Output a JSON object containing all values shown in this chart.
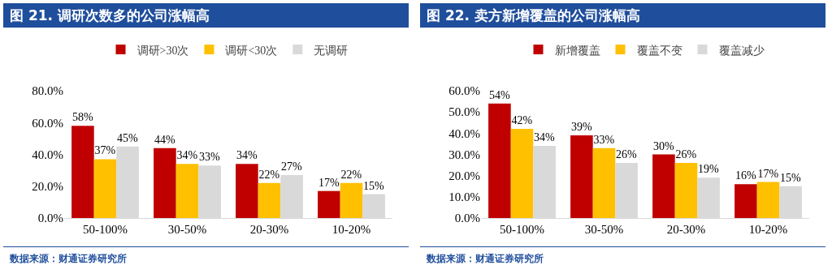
{
  "chart_data": [
    {
      "type": "bar",
      "title": "图 21. 调研次数多的公司涨幅高",
      "categories": [
        "50-100%",
        "30-50%",
        "20-30%",
        "10-20%"
      ],
      "series": [
        {
          "name": "调研>30次",
          "color": "#c00000",
          "values": [
            58,
            44,
            34,
            17
          ],
          "value_labels": [
            "58%",
            "44%",
            "34%",
            "17%"
          ]
        },
        {
          "name": "调研<30次",
          "color": "#ffc000",
          "values": [
            37,
            34,
            22,
            22
          ],
          "value_labels": [
            "37%",
            "34%",
            "22%",
            "22%"
          ]
        },
        {
          "name": "无调研",
          "color": "#d9d9d9",
          "values": [
            45,
            33,
            27,
            15
          ],
          "value_labels": [
            "45%",
            "33%",
            "27%",
            "15%"
          ]
        }
      ],
      "ylim": [
        0,
        80
      ],
      "yticks": [
        {
          "value": 0,
          "label": "0.0%"
        },
        {
          "value": 20,
          "label": "20.0%"
        },
        {
          "value": 40,
          "label": "40.0%"
        },
        {
          "value": 60,
          "label": "60.0%"
        },
        {
          "value": 80,
          "label": "80.0%"
        }
      ],
      "grid": false,
      "legend": "top",
      "annotations": [
        "数据来源：财通证券研究所"
      ]
    },
    {
      "type": "bar",
      "title": "图 22. 卖方新增覆盖的公司涨幅高",
      "categories": [
        "50-100%",
        "30-50%",
        "20-30%",
        "10-20%"
      ],
      "series": [
        {
          "name": "新增覆盖",
          "color": "#c00000",
          "values": [
            54,
            39,
            30,
            16
          ],
          "value_labels": [
            "54%",
            "39%",
            "30%",
            "16%"
          ]
        },
        {
          "name": "覆盖不变",
          "color": "#ffc000",
          "values": [
            42,
            33,
            26,
            17
          ],
          "value_labels": [
            "42%",
            "33%",
            "26%",
            "17%"
          ]
        },
        {
          "name": "覆盖减少",
          "color": "#d9d9d9",
          "values": [
            34,
            26,
            19,
            15
          ],
          "value_labels": [
            "34%",
            "26%",
            "19%",
            "15%"
          ]
        }
      ],
      "ylim": [
        0,
        60
      ],
      "yticks": [
        {
          "value": 0,
          "label": "0.0%"
        },
        {
          "value": 10,
          "label": "10.0%"
        },
        {
          "value": 20,
          "label": "20.0%"
        },
        {
          "value": 30,
          "label": "30.0%"
        },
        {
          "value": 40,
          "label": "40.0%"
        },
        {
          "value": 50,
          "label": "50.0%"
        },
        {
          "value": 60,
          "label": "60.0%"
        }
      ],
      "grid": false,
      "legend": "top",
      "annotations": [
        "数据来源：财通证券研究所"
      ]
    }
  ]
}
